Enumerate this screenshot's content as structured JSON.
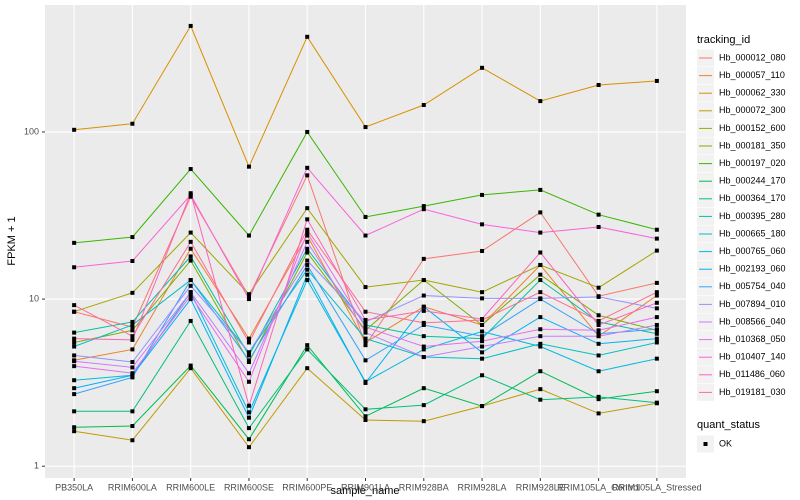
{
  "chart_data": {
    "type": "line",
    "x_label": "sample_name",
    "y_label": "FPKM + 1",
    "log_y": true,
    "grid": true,
    "legend_title": "tracking_id",
    "legend_position": "right",
    "shape_legend_title": "quant_status",
    "shape_legend_labels": [
      "OK"
    ],
    "categories": [
      "PB350LA",
      "RRIM600LA",
      "RRIM600LE",
      "RRIM600SE",
      "RRIM600PE",
      "RRIM901LA",
      "RRIM928BA",
      "RRIM928LA",
      "RRIM928LE",
      "RRIM105LA_Control",
      "RRIM105LA_Stressed"
    ],
    "ylim": [
      0.85,
      575
    ],
    "yticks": [
      1,
      10,
      100
    ],
    "series": [
      {
        "name": "Hb_000012_080",
        "color": "#F8766D",
        "values": [
          8.4,
          6.8,
          41,
          10.4,
          55,
          5.3,
          17.4,
          19.4,
          33,
          10.4,
          12.5
        ]
      },
      {
        "name": "Hb_000057_110",
        "color": "#EA8331",
        "values": [
          4.3,
          5.0,
          20,
          5.8,
          24,
          5.5,
          9.0,
          7.0,
          16,
          6.0,
          10.5
        ]
      },
      {
        "name": "Hb_000062_330",
        "color": "#D89000",
        "values": [
          103,
          112,
          431,
          62,
          371,
          107,
          145,
          242,
          153,
          191,
          202
        ]
      },
      {
        "name": "Hb_000072_300",
        "color": "#C09B00",
        "values": [
          1.62,
          1.43,
          3.86,
          1.3,
          3.86,
          1.89,
          1.86,
          2.29,
          2.89,
          2.07,
          2.38
        ]
      },
      {
        "name": "Hb_000152_600",
        "color": "#A3A500",
        "values": [
          8.4,
          10.9,
          25,
          10.7,
          35,
          11.8,
          13,
          11,
          16,
          11.7,
          19.5
        ]
      },
      {
        "name": "Hb_000181_350",
        "color": "#7CAE00",
        "values": [
          5.5,
          6.5,
          17,
          4.2,
          19,
          6.5,
          13,
          7.0,
          14,
          8.0,
          6.5
        ]
      },
      {
        "name": "Hb_000197_020",
        "color": "#39B600",
        "values": [
          21.7,
          23.5,
          60,
          24,
          100,
          31,
          36,
          42,
          45,
          32,
          26
        ]
      },
      {
        "name": "Hb_000244_170",
        "color": "#00BB4E",
        "values": [
          1.71,
          1.74,
          4.0,
          1.45,
          5.3,
          1.99,
          2.93,
          2.29,
          3.7,
          2.52,
          2.81
        ]
      },
      {
        "name": "Hb_000364_170",
        "color": "#00BF7D",
        "values": [
          2.13,
          2.13,
          7.4,
          1.69,
          5.0,
          2.19,
          2.32,
          3.5,
          2.5,
          2.6,
          2.4
        ]
      },
      {
        "name": "Hb_000395_280",
        "color": "#00C1A3",
        "values": [
          6.3,
          7.3,
          18,
          4.6,
          20,
          7.0,
          6.0,
          5.8,
          13,
          7.3,
          6.2
        ]
      },
      {
        "name": "Hb_000665_180",
        "color": "#00BFC4",
        "values": [
          5.2,
          7.0,
          13,
          4.8,
          15,
          5.8,
          4.5,
          4.4,
          5.4,
          4.6,
          5.5
        ]
      },
      {
        "name": "Hb_000765_060",
        "color": "#00BAE0",
        "values": [
          3.27,
          3.5,
          11,
          2.1,
          13,
          3.2,
          5.0,
          6.4,
          5.2,
          3.7,
          4.4
        ]
      },
      {
        "name": "Hb_002193_060",
        "color": "#00B0F6",
        "values": [
          2.93,
          3.5,
          10,
          1.95,
          14,
          3.15,
          9.0,
          4.8,
          7.8,
          5.4,
          5.8
        ]
      },
      {
        "name": "Hb_005754_040",
        "color": "#35A2FF",
        "values": [
          2.7,
          3.4,
          13,
          4.3,
          16,
          4.3,
          7.0,
          6.0,
          10,
          6.2,
          6.6
        ]
      },
      {
        "name": "Hb_007894_010",
        "color": "#9590FF",
        "values": [
          4.6,
          4.2,
          12,
          4.8,
          17,
          7.3,
          10.5,
          10.1,
          10.1,
          10.3,
          8.8
        ]
      },
      {
        "name": "Hb_008566_040",
        "color": "#C77CFF",
        "values": [
          4.25,
          3.9,
          11,
          3.6,
          22,
          6.3,
          4.5,
          5.2,
          6.0,
          6.0,
          7.0
        ]
      },
      {
        "name": "Hb_010368_050",
        "color": "#E76BF3",
        "values": [
          3.97,
          3.6,
          10.5,
          3.2,
          25,
          6.8,
          5.2,
          5.6,
          6.6,
          6.5,
          7.8
        ]
      },
      {
        "name": "Hb_010407_140",
        "color": "#FA62DB",
        "values": [
          15.5,
          16.9,
          42,
          10,
          61,
          24,
          34.5,
          28,
          25,
          27,
          23
        ]
      },
      {
        "name": "Hb_011486_060",
        "color": "#FF62BC",
        "values": [
          5.8,
          5.7,
          43,
          2.3,
          30,
          7.5,
          8.5,
          7.6,
          19,
          7.0,
          9.5
        ]
      },
      {
        "name": "Hb_019181_030",
        "color": "#FF6C91",
        "values": [
          9.2,
          6.0,
          22,
          5.5,
          26,
          8.4,
          7.2,
          7.5,
          11,
          7.4,
          11
        ]
      }
    ]
  }
}
